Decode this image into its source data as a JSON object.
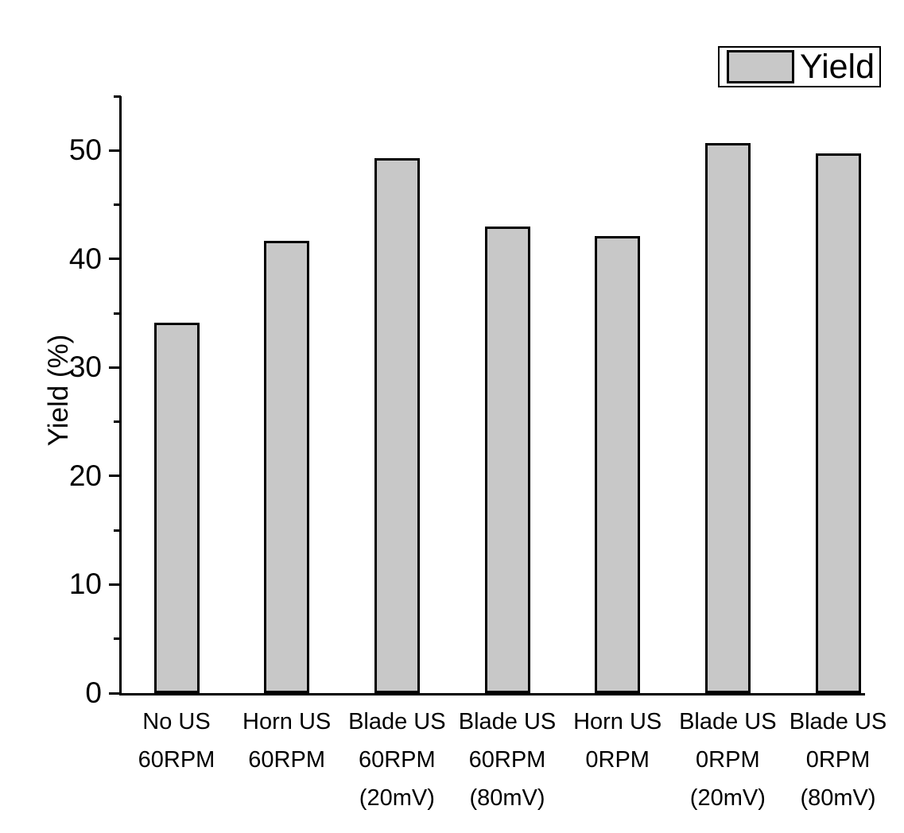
{
  "chart_data": {
    "type": "bar",
    "title": "",
    "xlabel": "",
    "ylabel": "Yield (%)",
    "ylim": [
      0,
      55
    ],
    "yticks_major": [
      0,
      10,
      20,
      30,
      40,
      50
    ],
    "yticks_minor": [
      5,
      15,
      25,
      35,
      45,
      55
    ],
    "grid": false,
    "legend": {
      "label": "Yield",
      "position": "top-right"
    },
    "bar_color": "#c8c8c8",
    "bar_border_color": "#000000",
    "axis_color": "#000000",
    "background_color": "#ffffff",
    "categories": [
      [
        "No US",
        "60RPM"
      ],
      [
        "Horn US",
        "60RPM"
      ],
      [
        "Blade US",
        "60RPM",
        "(20mV)"
      ],
      [
        "Blade US",
        "60RPM",
        "(80mV)"
      ],
      [
        "Horn US",
        "0RPM"
      ],
      [
        "Blade US",
        "0RPM",
        "(20mV)"
      ],
      [
        "Blade US",
        "0RPM",
        "(80mV)"
      ]
    ],
    "values": [
      34.1,
      41.7,
      49.3,
      43.0,
      42.1,
      50.7,
      49.7
    ]
  }
}
